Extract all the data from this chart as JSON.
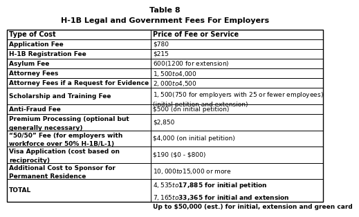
{
  "title_line1": "Table 8",
  "title_line2": "H-1B Legal and Government Fees For Employers",
  "col1_header": "Type of Cost",
  "col2_header": "Price of Fee or Service",
  "rows": [
    [
      "Application Fee",
      "$780"
    ],
    [
      "H-1B Registration Fee",
      "$215"
    ],
    [
      "Asylum Fee",
      "$600 ($1200 for extension)"
    ],
    [
      "Attorney Fees",
      "$1,500 to $4,000"
    ],
    [
      "Attorney Fees if a Request for Evidence",
      "$2,000 to $4,500"
    ],
    [
      "Scholarship and Training Fee",
      "$1,500 ($750 for employers with 25 or fewer employees)\n(initial petition and extension)"
    ],
    [
      "Anti-Fraud Fee",
      "$500 (on initial petition)"
    ],
    [
      "Premium Processing (optional but\ngenerally necessary)",
      "$2,850"
    ],
    [
      "“50/50” Fee (for employers with\nworkforce over 50% H-1B/L-1)",
      "$4,000 (on initial petition)"
    ],
    [
      "Visa Application (cost based on\nreciprocity)",
      "$190 ($0 - $800)"
    ],
    [
      "Additional Cost to Sponsor for\nPermanent Residence",
      "$10,000 to $15,000 or more"
    ],
    [
      "TOTAL",
      "$4,535 to $17,885 for initial petition\n$7,165 to $33,365 for initial and extension\nUp to $50,000 (est.) for initial, extension and green card"
    ]
  ],
  "col_split": 0.455,
  "background_color": "#ffffff",
  "border_color": "#000000",
  "text_color": "#000000",
  "font_size": 6.5,
  "header_font_size": 7.0,
  "title_font_size": 8.0
}
